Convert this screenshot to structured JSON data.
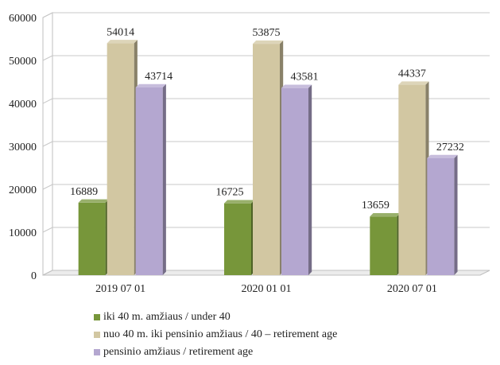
{
  "chart_data": {
    "type": "bar",
    "categories": [
      "2019 07 01",
      "2020 01 01",
      "2020 07 01"
    ],
    "series": [
      {
        "name": "iki 40 m. amžiaus / under 40",
        "values": [
          16889,
          16725,
          13659
        ],
        "color": "#77963a"
      },
      {
        "name": "nuo 40 m. iki pensinio amžiaus / 40 – retirement age",
        "values": [
          54014,
          53875,
          44337
        ],
        "color": "#d2c7a2"
      },
      {
        "name": "pensinio amžiaus / retirement age",
        "values": [
          43714,
          43581,
          27232
        ],
        "color": "#b4a7d0"
      }
    ],
    "y_ticks": [
      "0",
      "10000",
      "20000",
      "30000",
      "40000",
      "50000",
      "60000"
    ],
    "ylim": [
      0,
      60000
    ],
    "data_labels": true,
    "grid": true,
    "legend_position": "bottom-left",
    "style": "3d-clustered-column"
  }
}
